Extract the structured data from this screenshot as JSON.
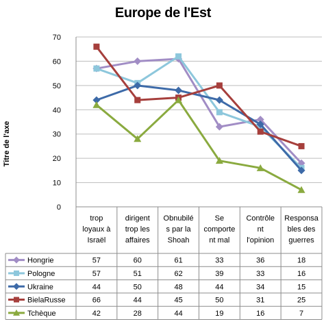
{
  "chart_data": {
    "type": "line",
    "title": "Europe de l'Est",
    "ylabel": "Titre de l'axe",
    "xlabel": "",
    "ylim": [
      0,
      70
    ],
    "yticks": [
      0,
      10,
      20,
      30,
      40,
      50,
      60,
      70
    ],
    "grid": "horizontal",
    "legend": "data-table",
    "categories": [
      [
        "trop",
        "loyaux à",
        "Israël"
      ],
      [
        "dirigent",
        "trop les",
        "affaires"
      ],
      [
        "Obnubilé",
        "s par la",
        "Shoah"
      ],
      [
        "Se",
        "comporte",
        "nt mal"
      ],
      [
        "Contrôle",
        "nt",
        "l'opinion"
      ],
      [
        "Responsa",
        "bles des",
        "guerres"
      ]
    ],
    "series": [
      {
        "name": "Hongrie",
        "marker": "diamond",
        "color": "#a18dc5",
        "values": [
          57,
          60,
          61,
          33,
          36,
          18
        ]
      },
      {
        "name": "Pologne",
        "marker": "square",
        "color": "#8dc7dc",
        "values": [
          57,
          51,
          62,
          39,
          33,
          16
        ]
      },
      {
        "name": "Ukraine",
        "marker": "diamond",
        "color": "#3d6aa8",
        "values": [
          44,
          50,
          48,
          44,
          34,
          15
        ]
      },
      {
        "name": "BielaRusse",
        "marker": "square",
        "color": "#a63f3c",
        "values": [
          66,
          44,
          45,
          50,
          31,
          25
        ]
      },
      {
        "name": "Tchèque",
        "marker": "triangle",
        "color": "#8aaa3f",
        "values": [
          42,
          28,
          44,
          19,
          16,
          7
        ]
      }
    ]
  }
}
